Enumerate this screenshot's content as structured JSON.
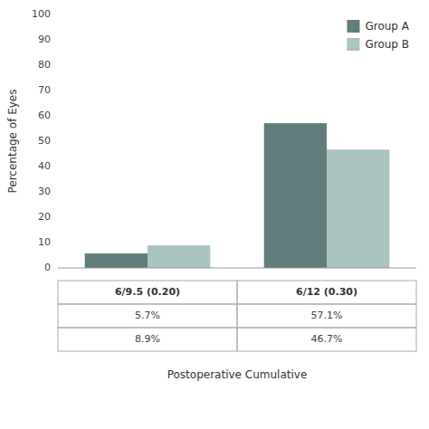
{
  "chart_data": {
    "type": "bar",
    "ylabel": "Percentage of Eyes",
    "xlabel": "Postoperative Cumulative",
    "categories": [
      "6/9.5 (0.20)",
      "6/12 (0.30)"
    ],
    "series": [
      {
        "name": "Group A",
        "color": "#607d7b",
        "values": [
          5.7,
          57.1
        ],
        "value_labels": [
          "5.7%",
          "57.1%"
        ]
      },
      {
        "name": "Group B",
        "color": "#aac4c0",
        "values": [
          8.9,
          46.7
        ],
        "value_labels": [
          "8.9%",
          "46.7%"
        ]
      }
    ],
    "ylim": [
      0,
      100
    ],
    "yticks": [
      0,
      10,
      20,
      30,
      40,
      50,
      60,
      70,
      80,
      90,
      100
    ],
    "grid": false,
    "legend": "upper right",
    "tick_labels": "y"
  }
}
